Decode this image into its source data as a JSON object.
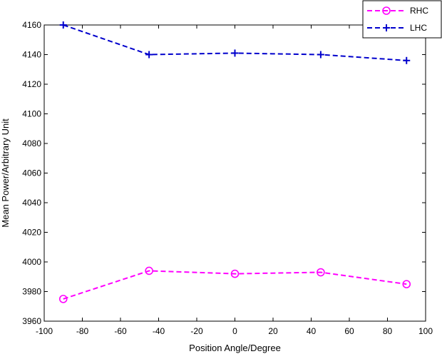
{
  "chart_data": {
    "type": "line",
    "xlabel": "Position Angle/Degree",
    "ylabel": "Mean Power/Arbitrary Unit",
    "xlim": [
      -100,
      100
    ],
    "ylim": [
      3960,
      4160
    ],
    "xticks": [
      -100,
      -80,
      -60,
      -40,
      -20,
      0,
      20,
      40,
      60,
      80,
      100
    ],
    "yticks": [
      3960,
      3980,
      4000,
      4020,
      4040,
      4060,
      4080,
      4100,
      4120,
      4140,
      4160
    ],
    "grid": false,
    "legend_position": "top-right",
    "series": [
      {
        "name": "RHC",
        "color": "#ff00ff",
        "marker": "circle",
        "linestyle": "dashed",
        "x": [
          -90,
          -45,
          0,
          45,
          90
        ],
        "y": [
          3975,
          3994,
          3992,
          3993,
          3985
        ]
      },
      {
        "name": "LHC",
        "color": "#0000cc",
        "marker": "plus",
        "linestyle": "dashed",
        "x": [
          -90,
          -45,
          0,
          45,
          90
        ],
        "y": [
          4160,
          4140,
          4141,
          4140,
          4136
        ]
      }
    ]
  }
}
